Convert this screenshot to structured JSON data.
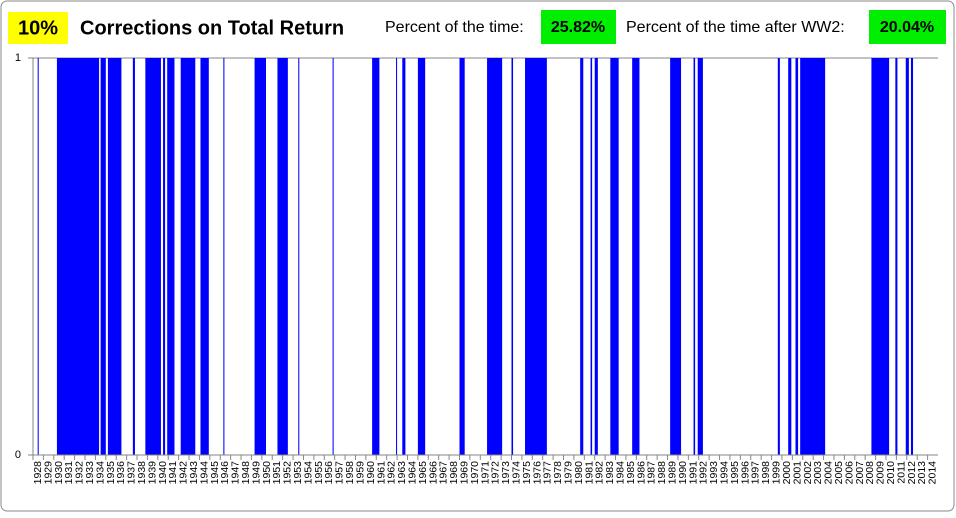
{
  "chart_data": {
    "type": "span",
    "threshold_label": "10%",
    "title": "Corrections on Total Return",
    "annotations": [
      {
        "text": "Percent of the time:",
        "value_label": "25.82%"
      },
      {
        "text": "Percent of the time after WW2:",
        "value_label": "20.04%"
      }
    ],
    "color": "#0000ff",
    "periods": [
      {
        "start": 1928.45,
        "end": 1928.55,
        "value": 1
      },
      {
        "start": 1930.3,
        "end": 1934.35,
        "value": 1
      },
      {
        "start": 1934.5,
        "end": 1935.0,
        "value": 1
      },
      {
        "start": 1935.2,
        "end": 1936.5,
        "value": 1
      },
      {
        "start": 1937.6,
        "end": 1937.8,
        "value": 1
      },
      {
        "start": 1938.8,
        "end": 1940.3,
        "value": 1
      },
      {
        "start": 1940.5,
        "end": 1940.7,
        "value": 1
      },
      {
        "start": 1940.9,
        "end": 1941.6,
        "value": 1
      },
      {
        "start": 1942.2,
        "end": 1943.6,
        "value": 1
      },
      {
        "start": 1944.1,
        "end": 1944.9,
        "value": 1
      },
      {
        "start": 1946.3,
        "end": 1946.4,
        "value": 1
      },
      {
        "start": 1949.3,
        "end": 1950.4,
        "value": 1
      },
      {
        "start": 1951.5,
        "end": 1952.5,
        "value": 1
      },
      {
        "start": 1953.5,
        "end": 1953.6,
        "value": 1
      },
      {
        "start": 1956.8,
        "end": 1956.9,
        "value": 1
      },
      {
        "start": 1960.6,
        "end": 1961.3,
        "value": 1
      },
      {
        "start": 1962.9,
        "end": 1963.0,
        "value": 1
      },
      {
        "start": 1963.5,
        "end": 1963.8,
        "value": 1
      },
      {
        "start": 1965.0,
        "end": 1965.7,
        "value": 1
      },
      {
        "start": 1969.0,
        "end": 1969.5,
        "value": 1
      },
      {
        "start": 1971.65,
        "end": 1973.1,
        "value": 1
      },
      {
        "start": 1974.0,
        "end": 1974.15,
        "value": 1
      },
      {
        "start": 1975.3,
        "end": 1977.4,
        "value": 1
      },
      {
        "start": 1980.6,
        "end": 1980.9,
        "value": 1
      },
      {
        "start": 1981.6,
        "end": 1981.75,
        "value": 1
      },
      {
        "start": 1982.0,
        "end": 1982.3,
        "value": 1
      },
      {
        "start": 1983.5,
        "end": 1984.3,
        "value": 1
      },
      {
        "start": 1985.6,
        "end": 1986.3,
        "value": 1
      },
      {
        "start": 1989.25,
        "end": 1990.3,
        "value": 1
      },
      {
        "start": 1991.5,
        "end": 1991.65,
        "value": 1
      },
      {
        "start": 1991.9,
        "end": 1992.4,
        "value": 1
      },
      {
        "start": 1999.6,
        "end": 1999.8,
        "value": 1
      },
      {
        "start": 2000.6,
        "end": 2000.9,
        "value": 1
      },
      {
        "start": 2001.3,
        "end": 2001.55,
        "value": 1
      },
      {
        "start": 2001.75,
        "end": 2004.15,
        "value": 1
      },
      {
        "start": 2008.6,
        "end": 2010.3,
        "value": 1
      },
      {
        "start": 2010.9,
        "end": 2011.1,
        "value": 1
      },
      {
        "start": 2011.9,
        "end": 2012.2,
        "value": 1
      },
      {
        "start": 2012.4,
        "end": 2012.6,
        "value": 1
      }
    ],
    "xlim": [
      1928,
      2015
    ],
    "xticks": [
      1928,
      1929,
      1930,
      1931,
      1932,
      1933,
      1934,
      1935,
      1936,
      1937,
      1938,
      1939,
      1940,
      1941,
      1942,
      1943,
      1944,
      1945,
      1946,
      1947,
      1948,
      1949,
      1950,
      1951,
      1952,
      1953,
      1954,
      1955,
      1956,
      1957,
      1958,
      1959,
      1960,
      1961,
      1962,
      1963,
      1964,
      1965,
      1966,
      1967,
      1968,
      1969,
      1970,
      1971,
      1972,
      1973,
      1974,
      1975,
      1976,
      1977,
      1978,
      1979,
      1980,
      1981,
      1982,
      1983,
      1984,
      1985,
      1986,
      1987,
      1988,
      1989,
      1990,
      1991,
      1992,
      1993,
      1994,
      1995,
      1996,
      1997,
      1998,
      1999,
      2000,
      2001,
      2002,
      2003,
      2004,
      2005,
      2006,
      2007,
      2008,
      2009,
      2010,
      2011,
      2012,
      2013,
      2014
    ],
    "ylim": [
      0,
      1
    ],
    "yticks": [
      0,
      1
    ],
    "grid": true
  }
}
